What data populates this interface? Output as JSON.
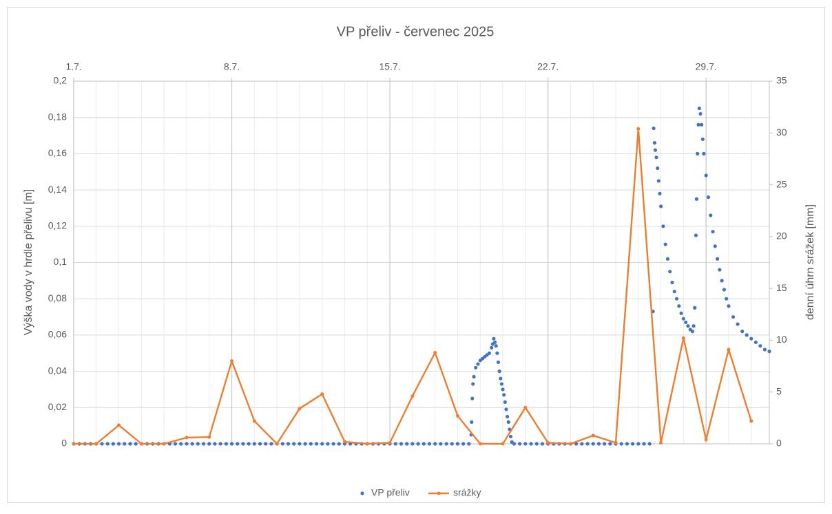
{
  "chart_data": {
    "type": "scatter",
    "title": "VP přeliv - červenec 2025",
    "y_label": "Výška vody v hrdle přelivu [m]",
    "y2_label": "denní úhrn srážek [mm]",
    "xlim": [
      1,
      31.8
    ],
    "xticks": [
      {
        "value": 1,
        "label": "1.7."
      },
      {
        "value": 8,
        "label": "8.7."
      },
      {
        "value": 15,
        "label": "15.7."
      },
      {
        "value": 22,
        "label": "22.7."
      },
      {
        "value": 29,
        "label": "29.7."
      }
    ],
    "xminorticks": [
      1,
      2,
      3,
      4,
      5,
      6,
      7,
      8,
      9,
      10,
      11,
      12,
      13,
      14,
      15,
      16,
      17,
      18,
      19,
      20,
      21,
      22,
      23,
      24,
      25,
      26,
      27,
      28,
      29,
      30,
      31
    ],
    "ylim": [
      0,
      0.2
    ],
    "yticks": [
      0,
      {
        "value": 0.02,
        "label": "0,02"
      },
      {
        "value": 0.04,
        "label": "0,04"
      },
      {
        "value": 0.06,
        "label": "0,06"
      },
      {
        "value": 0.08,
        "label": "0,08"
      },
      {
        "value": 0.1,
        "label": "0,1"
      },
      {
        "value": 0.12,
        "label": "0,12"
      },
      {
        "value": 0.14,
        "label": "0,14"
      },
      {
        "value": 0.16,
        "label": "0,16"
      },
      {
        "value": 0.18,
        "label": "0,18"
      },
      {
        "value": 0.2,
        "label": "0,2"
      }
    ],
    "y2lim": [
      0,
      35
    ],
    "y2ticks": [
      0,
      5,
      10,
      15,
      20,
      25,
      30,
      35
    ],
    "grid": true,
    "legend": "bottom",
    "series": [
      {
        "name": "VP přeliv",
        "type": "scatter",
        "color": "#4472c4",
        "x": [
          1,
          1.25,
          1.5,
          1.75,
          2,
          2.25,
          2.5,
          2.75,
          3,
          3.25,
          3.5,
          3.75,
          4,
          4.25,
          4.5,
          4.75,
          5,
          5.25,
          5.5,
          5.75,
          6,
          6.25,
          6.5,
          6.75,
          7,
          7.25,
          7.5,
          7.75,
          8,
          8.25,
          8.5,
          8.75,
          9,
          9.25,
          9.5,
          9.75,
          10,
          10.25,
          10.5,
          10.75,
          11,
          11.25,
          11.5,
          11.75,
          12,
          12.25,
          12.5,
          12.75,
          13,
          13.25,
          13.5,
          13.75,
          14,
          14.25,
          14.5,
          14.75,
          15,
          15.25,
          15.5,
          15.75,
          16,
          16.25,
          16.5,
          16.75,
          17,
          17.25,
          17.5,
          17.75,
          18,
          18.25,
          18.5,
          18.6,
          18.62,
          18.65,
          18.68,
          18.72,
          18.8,
          18.9,
          19.0,
          19.1,
          19.2,
          19.3,
          19.4,
          19.5,
          19.55,
          19.6,
          19.65,
          19.7,
          19.75,
          19.8,
          19.85,
          19.9,
          19.95,
          20.0,
          20.05,
          20.1,
          20.15,
          20.2,
          20.25,
          20.3,
          20.35,
          20.4,
          20.5,
          20.75,
          21,
          21.25,
          21.5,
          21.75,
          22,
          22.25,
          22.5,
          22.75,
          23,
          23.25,
          23.5,
          23.75,
          24,
          24.25,
          24.5,
          24.75,
          25,
          25.25,
          25.5,
          25.75,
          26,
          26.25,
          26.5,
          26.65,
          26.68,
          26.72,
          26.75,
          26.8,
          26.85,
          26.9,
          26.95,
          27.0,
          27.1,
          27.2,
          27.3,
          27.4,
          27.5,
          27.6,
          27.7,
          27.8,
          27.9,
          28.0,
          28.1,
          28.2,
          28.3,
          28.4,
          28.45,
          28.5,
          28.55,
          28.58,
          28.62,
          28.66,
          28.7,
          28.75,
          28.8,
          28.85,
          28.9,
          29.0,
          29.1,
          29.2,
          29.3,
          29.4,
          29.5,
          29.6,
          29.7,
          29.8,
          29.9,
          30.0,
          30.2,
          30.4,
          30.6,
          30.8,
          31.0,
          31.2,
          31.4,
          31.6,
          31.8
        ],
        "values": [
          0,
          0,
          0,
          0,
          0,
          0,
          0,
          0,
          0,
          0,
          0,
          0,
          0,
          0,
          0,
          0,
          0,
          0,
          0,
          0,
          0,
          0,
          0,
          0,
          0,
          0,
          0,
          0,
          0,
          0,
          0,
          0,
          0,
          0,
          0,
          0,
          0,
          0,
          0,
          0,
          0,
          0,
          0,
          0,
          0,
          0,
          0,
          0,
          0,
          0,
          0,
          0,
          0,
          0,
          0,
          0,
          0,
          0,
          0,
          0,
          0,
          0,
          0,
          0,
          0,
          0,
          0,
          0,
          0,
          0,
          0,
          0.005,
          0.012,
          0.025,
          0.033,
          0.037,
          0.042,
          0.044,
          0.046,
          0.047,
          0.048,
          0.049,
          0.05,
          0.053,
          0.055,
          0.058,
          0.056,
          0.054,
          0.05,
          0.045,
          0.04,
          0.036,
          0.033,
          0.03,
          0.027,
          0.023,
          0.019,
          0.015,
          0.012,
          0.008,
          0.004,
          0.001,
          0,
          0,
          0,
          0,
          0,
          0,
          0,
          0,
          0,
          0,
          0,
          0,
          0,
          0,
          0,
          0,
          0,
          0,
          0,
          0,
          0,
          0,
          0,
          0,
          0,
          0.073,
          0.174,
          0.166,
          0.162,
          0.158,
          0.152,
          0.145,
          0.138,
          0.131,
          0.12,
          0.11,
          0.102,
          0.095,
          0.089,
          0.084,
          0.08,
          0.076,
          0.072,
          0.069,
          0.067,
          0.065,
          0.063,
          0.062,
          0.065,
          0.075,
          0.115,
          0.135,
          0.16,
          0.176,
          0.185,
          0.182,
          0.176,
          0.168,
          0.16,
          0.148,
          0.136,
          0.126,
          0.117,
          0.109,
          0.102,
          0.096,
          0.09,
          0.085,
          0.08,
          0.076,
          0.07,
          0.066,
          0.062,
          0.06,
          0.058,
          0.056,
          0.054,
          0.052,
          0.051
        ]
      },
      {
        "name": "srážky",
        "type": "line",
        "axis": "y2",
        "color": "#ed7d31",
        "x": [
          1,
          2,
          3,
          4,
          5,
          6,
          7,
          8,
          9,
          10,
          11,
          12,
          13,
          14,
          15,
          16,
          17,
          18,
          19,
          20,
          21,
          22,
          23,
          24,
          25,
          26,
          27,
          28,
          29,
          30,
          31
        ],
        "values": [
          0,
          0,
          1.8,
          0,
          0,
          0.6,
          0.65,
          8,
          2.2,
          0,
          3.4,
          4.8,
          0.2,
          0,
          0.1,
          4.6,
          8.8,
          2.7,
          0,
          0,
          3.5,
          0.1,
          0,
          0.8,
          0.1,
          30.4,
          0.1,
          10.2,
          0.4,
          9.1,
          2.2
        ]
      }
    ]
  }
}
